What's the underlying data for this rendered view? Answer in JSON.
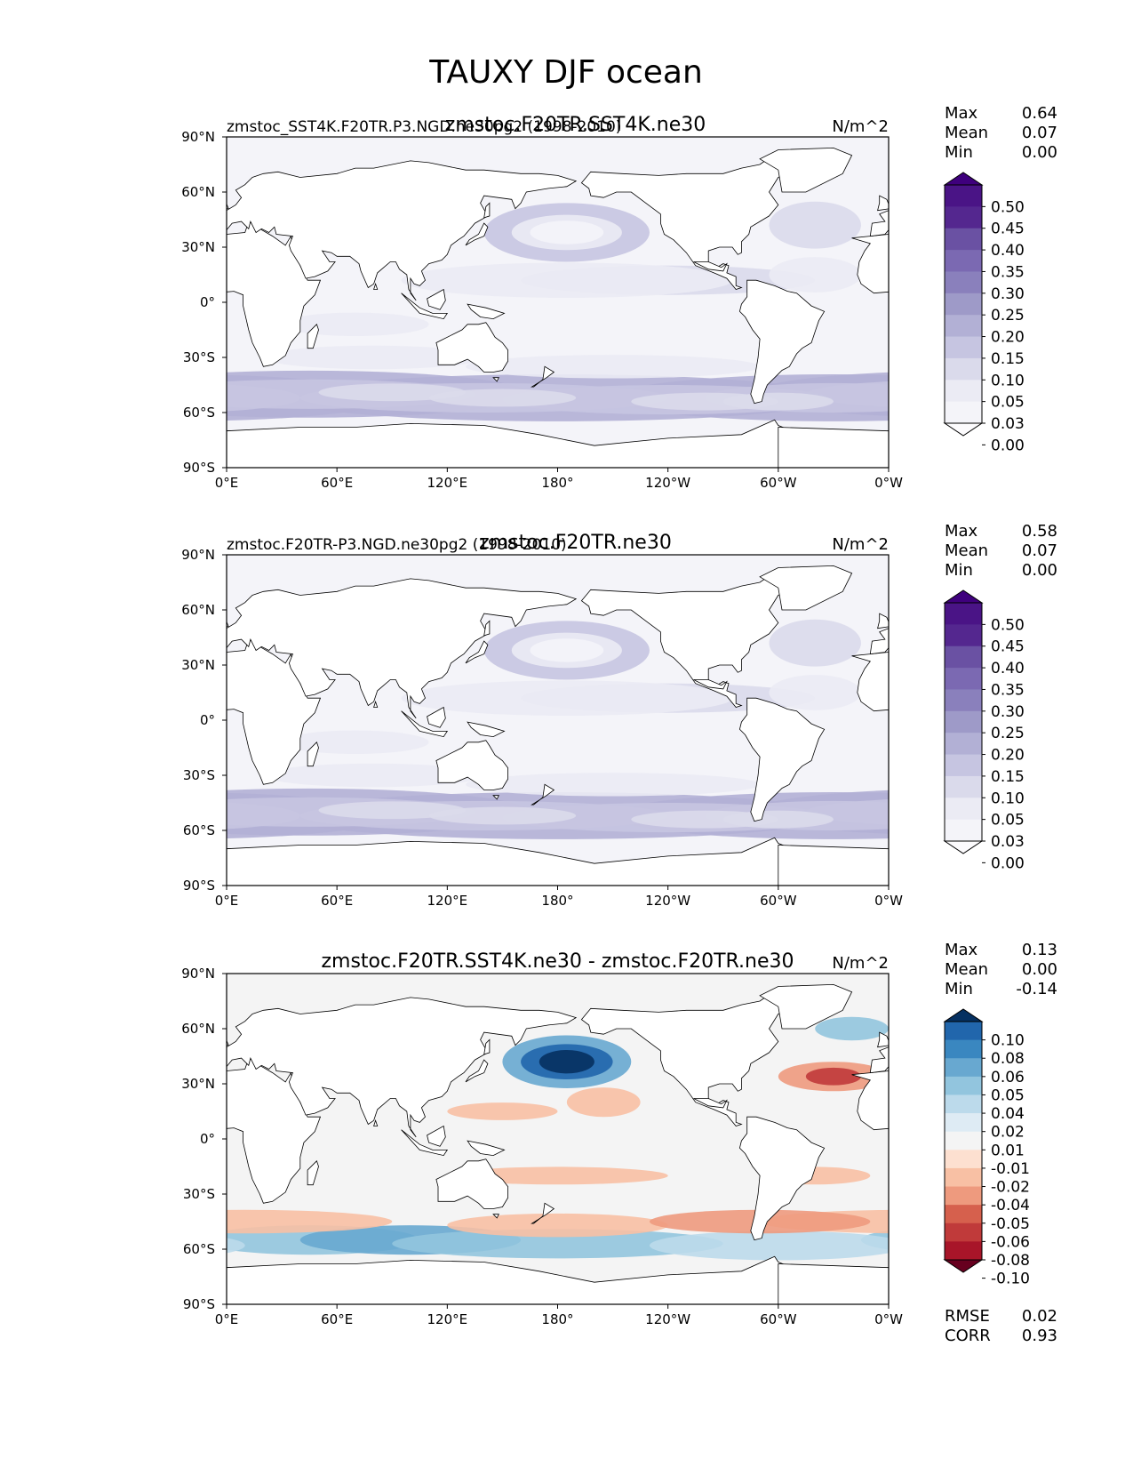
{
  "figure_title": "TAUXY DJF ocean",
  "colors": {
    "land": "#ffffff",
    "coast": "#000000"
  },
  "chart_data": [
    {
      "type": "heatmap",
      "title_left": "zmstoc_SST4K.F20TR.P3.NGD.ne30pg2 (1998-2010)",
      "title_center": "zmstoc.F20TR.SST4K.ne30",
      "units": "N/m^2",
      "stats": [
        {
          "label": "Max",
          "value": "0.64"
        },
        {
          "label": "Mean",
          "value": "0.07"
        },
        {
          "label": "Min",
          "value": "0.00"
        }
      ],
      "x_ticks": [
        "0°E",
        "60°E",
        "120°E",
        "180°",
        "120°W",
        "60°W",
        "0°W"
      ],
      "y_ticks": [
        "90°N",
        "60°N",
        "30°N",
        "0°",
        "30°S",
        "60°S",
        "90°S"
      ],
      "xlim": [
        0,
        360
      ],
      "ylim": [
        -90,
        90
      ],
      "colorbar": {
        "levels": [
          "0.50",
          "0.45",
          "0.40",
          "0.35",
          "0.30",
          "0.25",
          "0.20",
          "0.15",
          "0.10",
          "0.05",
          "0.03",
          "0.00"
        ],
        "colors": [
          "#3f007d",
          "#4a1486",
          "#54278f",
          "#6a51a3",
          "#7b69b2",
          "#8a80bc",
          "#9e9ac8",
          "#b2b0d5",
          "#c6c5e1",
          "#dadaeb",
          "#ebebf4",
          "#f4f4f9",
          "#fcfbfd"
        ]
      }
    },
    {
      "type": "heatmap",
      "title_left": "zmstoc.F20TR-P3.NGD.ne30pg2 (1998-2010)",
      "title_center": "zmstoc.F20TR.ne30",
      "units": "N/m^2",
      "stats": [
        {
          "label": "Max",
          "value": "0.58"
        },
        {
          "label": "Mean",
          "value": "0.07"
        },
        {
          "label": "Min",
          "value": "0.00"
        }
      ],
      "x_ticks": [
        "0°E",
        "60°E",
        "120°E",
        "180°",
        "120°W",
        "60°W",
        "0°W"
      ],
      "y_ticks": [
        "90°N",
        "60°N",
        "30°N",
        "0°",
        "30°S",
        "60°S",
        "90°S"
      ],
      "xlim": [
        0,
        360
      ],
      "ylim": [
        -90,
        90
      ],
      "colorbar": {
        "levels": [
          "0.50",
          "0.45",
          "0.40",
          "0.35",
          "0.30",
          "0.25",
          "0.20",
          "0.15",
          "0.10",
          "0.05",
          "0.03",
          "0.00"
        ],
        "colors": [
          "#3f007d",
          "#4a1486",
          "#54278f",
          "#6a51a3",
          "#7b69b2",
          "#8a80bc",
          "#9e9ac8",
          "#b2b0d5",
          "#c6c5e1",
          "#dadaeb",
          "#ebebf4",
          "#f4f4f9",
          "#fcfbfd"
        ]
      }
    },
    {
      "type": "heatmap",
      "title_left": "",
      "title_center": "zmstoc.F20TR.SST4K.ne30 - zmstoc.F20TR.ne30",
      "units": "N/m^2",
      "stats": [
        {
          "label": "Max",
          "value": "0.13"
        },
        {
          "label": "Mean",
          "value": "0.00"
        },
        {
          "label": "Min",
          "value": "-0.14"
        }
      ],
      "extra_stats": [
        {
          "label": "RMSE",
          "value": "0.02"
        },
        {
          "label": "CORR",
          "value": "0.93"
        }
      ],
      "x_ticks": [
        "0°E",
        "60°E",
        "120°E",
        "180°",
        "120°W",
        "60°W",
        "0°W"
      ],
      "y_ticks": [
        "90°N",
        "60°N",
        "30°N",
        "0°",
        "30°S",
        "60°S",
        "90°S"
      ],
      "xlim": [
        0,
        360
      ],
      "ylim": [
        -90,
        90
      ],
      "colorbar": {
        "levels": [
          "0.10",
          "0.08",
          "0.06",
          "0.05",
          "0.04",
          "0.02",
          "0.01",
          "-0.01",
          "-0.02",
          "-0.04",
          "-0.05",
          "-0.06",
          "-0.08",
          "-0.10"
        ],
        "colors": [
          "#053061",
          "#2166ac",
          "#3a87c0",
          "#68a8d0",
          "#92c5de",
          "#bcdaeb",
          "#deebf4",
          "#f4f4f4",
          "#fde0d0",
          "#f8c0a4",
          "#ee9a7e",
          "#d6604d",
          "#c03a3a",
          "#a81529",
          "#67001f"
        ]
      }
    }
  ]
}
